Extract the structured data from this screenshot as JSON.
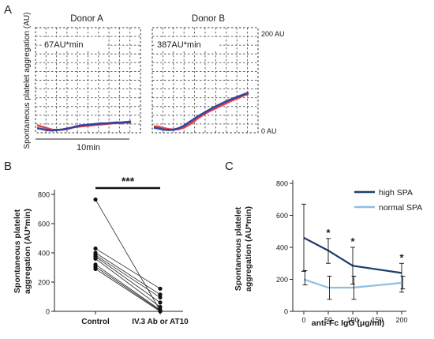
{
  "panels": {
    "A": {
      "letter": "A"
    },
    "B": {
      "letter": "B"
    },
    "C": {
      "letter": "C"
    }
  },
  "chart_data": [
    {
      "type": "line",
      "panel": "A",
      "ylabel": "Spontaneous platelet aggregation (AU)",
      "y_ticks": [
        "200 AU",
        "0 AU"
      ],
      "ylim": [
        0,
        200
      ],
      "scale_bar": "10min",
      "grid": true,
      "subplots": [
        {
          "title": "Donor A",
          "annotation": "67AU*min",
          "series": [
            {
              "color": "#e03a3e",
              "y": [
                4,
                1,
                -2,
                -5,
                -6,
                -5,
                -4,
                -1,
                1,
                2,
                3,
                4,
                5,
                6,
                7,
                8,
                9,
                8,
                10,
                9
              ]
            },
            {
              "color": "#2c3e9e",
              "y": [
                -2,
                -4,
                -6,
                -7,
                -6,
                -5,
                -3,
                -1,
                2,
                4,
                5,
                6,
                7,
                8,
                8,
                9,
                10,
                10,
                11,
                12
              ]
            }
          ]
        },
        {
          "title": "Donor B",
          "annotation": "387AU*min",
          "series": [
            {
              "color": "#e03a3e",
              "y": [
                2,
                1,
                -2,
                -4,
                -5,
                -4,
                -1,
                5,
                12,
                20,
                27,
                33,
                38,
                43,
                48,
                53,
                58,
                62,
                67,
                70
              ]
            },
            {
              "color": "#2c3e9e",
              "y": [
                -1,
                -3,
                -5,
                -6,
                -5,
                -2,
                3,
                10,
                17,
                24,
                30,
                36,
                42,
                47,
                52,
                57,
                61,
                65,
                69,
                73
              ]
            }
          ]
        }
      ]
    },
    {
      "type": "scatter",
      "panel": "B",
      "ylabel": "Spontaneous platelet aggregation (AU*min)",
      "categories": [
        "Control",
        "IV.3 Ab or AT10"
      ],
      "yticks": [
        "0",
        "200",
        "400",
        "600",
        "800"
      ],
      "ylim": [
        0,
        800
      ],
      "significance": "***",
      "pairs": [
        [
          765,
          5
        ],
        [
          430,
          155
        ],
        [
          400,
          115
        ],
        [
          385,
          95
        ],
        [
          375,
          60
        ],
        [
          360,
          30
        ],
        [
          320,
          10
        ],
        [
          305,
          5
        ],
        [
          290,
          0
        ]
      ]
    },
    {
      "type": "line",
      "panel": "C",
      "ylabel": "Spontaneous platelet aggregation (AU*min)",
      "xlabel": "anti-Fc IgG (µg/ml)",
      "x": [
        0,
        50,
        100,
        200
      ],
      "xticks": [
        "0",
        "50",
        "100",
        "150",
        "200"
      ],
      "yticks": [
        "0",
        "200",
        "400",
        "600",
        "800"
      ],
      "xlim": [
        -10,
        215
      ],
      "ylim": [
        0,
        800
      ],
      "legend_position": "top-right",
      "significance_marks": [
        {
          "x": 50,
          "label": "*"
        },
        {
          "x": 100,
          "label": "*"
        },
        {
          "x": 200,
          "label": "*"
        }
      ],
      "series": [
        {
          "name": "high SPA",
          "color": "#1e3d6b",
          "values": [
            460,
            380,
            285,
            240
          ],
          "err_upper": [
            670,
            455,
            400,
            300
          ],
          "err_lower": [
            250,
            300,
            170,
            120
          ]
        },
        {
          "name": "normal SPA",
          "color": "#8fbfe0",
          "values": [
            200,
            148,
            148,
            178
          ],
          "err_upper": [
            255,
            220,
            220,
            220
          ],
          "err_lower": [
            165,
            75,
            75,
            140
          ]
        }
      ]
    }
  ]
}
